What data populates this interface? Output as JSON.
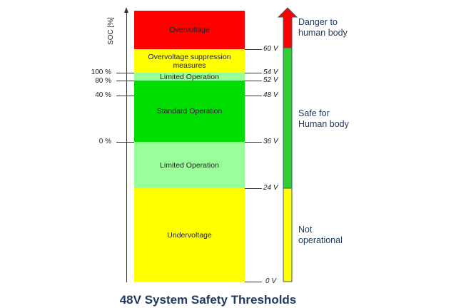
{
  "title": "48V System Safety Thresholds",
  "axis_label": "SOC [%]",
  "segments": [
    {
      "label": "Overvoltage",
      "color": "#ff0000"
    },
    {
      "label": "Overvoltage suppression measures",
      "color": "#ffff00"
    },
    {
      "label": "Limited Operation",
      "color": "#99ff99"
    },
    {
      "label": "Standard Operation",
      "color": "#00dd00"
    },
    {
      "label": "Limited Operation",
      "color": "#99ff99"
    },
    {
      "label": "Undervoltage",
      "color": "#ffff00"
    }
  ],
  "soc_labels": [
    "100 %",
    "80 %",
    "40 %",
    "0 %"
  ],
  "voltage_labels": [
    "60 V",
    "54 V",
    "52 V",
    "48 V",
    "36 V",
    "24 V",
    "0 V"
  ],
  "zones": [
    {
      "label": "Danger to human body",
      "color": "#ff0000"
    },
    {
      "label": "Safe for Human body",
      "color": "#33cc33"
    },
    {
      "label": "Not operational",
      "color": "#ffff00"
    }
  ]
}
